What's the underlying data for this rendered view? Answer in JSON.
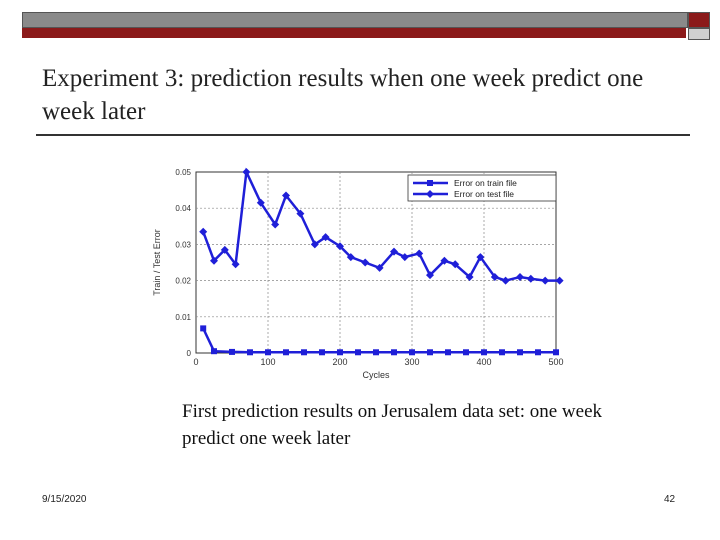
{
  "slide": {
    "title": "Experiment 3: prediction results when one week predict one week later",
    "caption": "First prediction results on Jerusalem data set: one week predict one week later",
    "date": "9/15/2020",
    "page_number": "42"
  },
  "colors": {
    "accent_red": "#8b1a1a",
    "bar_gray": "#8a8a8a",
    "series_blue": "#1f1fd8"
  },
  "chart_data": {
    "type": "line",
    "title": "",
    "xlabel": "Cycles",
    "ylabel": "Train / Test Error",
    "xlim": [
      0,
      500
    ],
    "ylim": [
      0,
      0.05
    ],
    "xticks": [
      "0",
      "100",
      "200",
      "300",
      "400",
      "500"
    ],
    "yticks": [
      "0",
      "0.01",
      "0.02",
      "0.03",
      "0.04",
      "0.05"
    ],
    "grid": true,
    "legend_position": "top-right",
    "series": [
      {
        "name": "Error on train file",
        "marker": "square",
        "x": [
          10,
          25,
          50,
          75,
          100,
          125,
          150,
          175,
          200,
          225,
          250,
          275,
          300,
          325,
          350,
          375,
          400,
          425,
          450,
          475,
          500
        ],
        "y": [
          0.0068,
          0.0005,
          0.0003,
          0.0002,
          0.0002,
          0.0002,
          0.0002,
          0.0002,
          0.0002,
          0.0002,
          0.0002,
          0.0002,
          0.0002,
          0.0002,
          0.0002,
          0.0002,
          0.0002,
          0.0002,
          0.0002,
          0.0002,
          0.0002
        ]
      },
      {
        "name": "Error on test file",
        "marker": "diamond",
        "x": [
          10,
          25,
          40,
          55,
          70,
          90,
          110,
          125,
          145,
          165,
          180,
          200,
          215,
          235,
          255,
          275,
          290,
          310,
          325,
          345,
          360,
          380,
          395,
          415,
          430,
          450,
          465,
          485,
          505
        ],
        "y": [
          0.0335,
          0.0255,
          0.0285,
          0.0245,
          0.05,
          0.0415,
          0.0355,
          0.0435,
          0.0385,
          0.03,
          0.032,
          0.0295,
          0.0265,
          0.025,
          0.0235,
          0.028,
          0.0265,
          0.0275,
          0.0215,
          0.0255,
          0.0245,
          0.021,
          0.0265,
          0.021,
          0.02,
          0.021,
          0.0205,
          0.02,
          0.02
        ]
      }
    ]
  }
}
